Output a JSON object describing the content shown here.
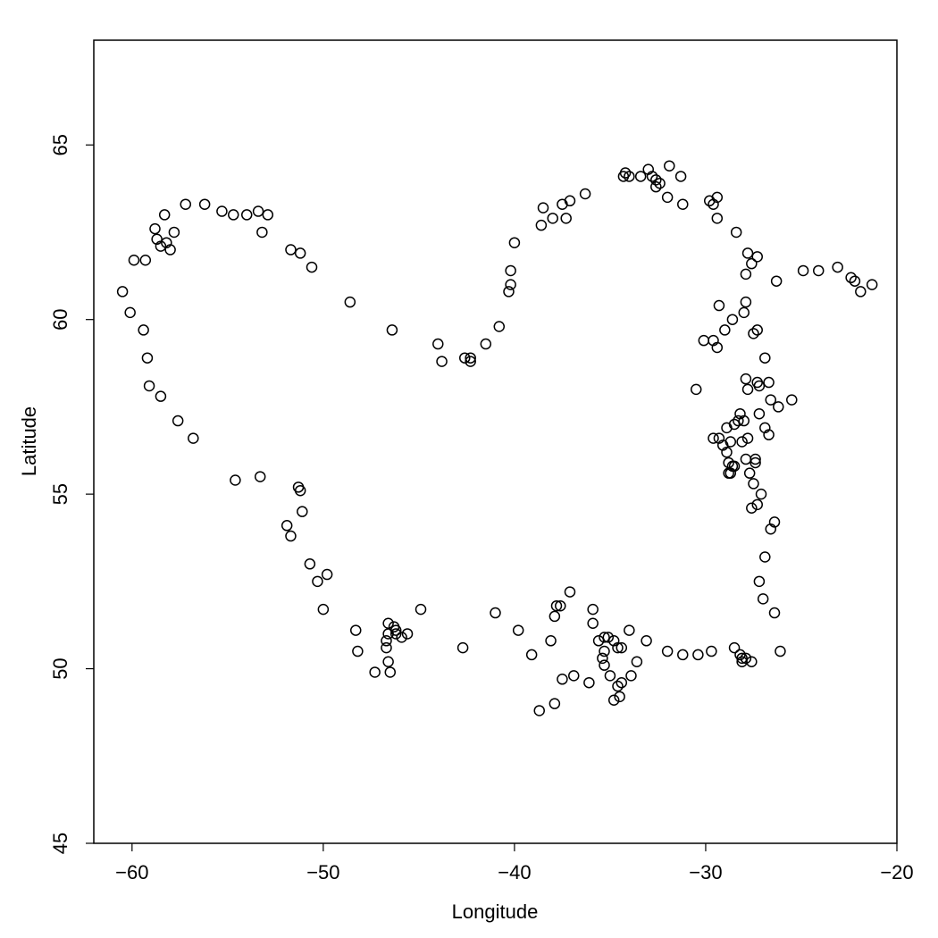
{
  "chart_data": {
    "type": "scatter",
    "title": "",
    "xlabel": "Longitude",
    "ylabel": "Latitude",
    "xlim": [
      -62,
      -20
    ],
    "ylim": [
      45,
      68
    ],
    "xticks": [
      -60,
      -50,
      -40,
      -30,
      -20
    ],
    "yticks": [
      45,
      50,
      55,
      60,
      65
    ],
    "xtick_labels": [
      "−60",
      "−50",
      "−40",
      "−30",
      "−20"
    ],
    "ytick_labels": [
      "45",
      "50",
      "55",
      "60",
      "65"
    ],
    "grid": false,
    "marker": "open-circle",
    "points": [
      [
        -60.5,
        60.8
      ],
      [
        -60.1,
        60.2
      ],
      [
        -59.9,
        61.7
      ],
      [
        -59.3,
        61.7
      ],
      [
        -59.4,
        59.7
      ],
      [
        -59.2,
        58.9
      ],
      [
        -59.1,
        58.1
      ],
      [
        -58.8,
        62.6
      ],
      [
        -58.7,
        62.3
      ],
      [
        -58.5,
        62.1
      ],
      [
        -58.2,
        62.2
      ],
      [
        -58.3,
        63.0
      ],
      [
        -58.0,
        62.0
      ],
      [
        -57.8,
        62.5
      ],
      [
        -57.6,
        57.1
      ],
      [
        -57.2,
        63.3
      ],
      [
        -58.5,
        57.8
      ],
      [
        -56.8,
        56.6
      ],
      [
        -56.2,
        63.3
      ],
      [
        -55.3,
        63.1
      ],
      [
        -54.7,
        63.0
      ],
      [
        -54.0,
        63.0
      ],
      [
        -53.4,
        63.1
      ],
      [
        -52.9,
        63.0
      ],
      [
        -53.2,
        62.5
      ],
      [
        -54.6,
        55.4
      ],
      [
        -53.3,
        55.5
      ],
      [
        -51.7,
        62.0
      ],
      [
        -51.2,
        61.9
      ],
      [
        -50.6,
        61.5
      ],
      [
        -48.6,
        60.5
      ],
      [
        -46.4,
        59.7
      ],
      [
        -51.3,
        55.2
      ],
      [
        -51.2,
        55.1
      ],
      [
        -51.1,
        54.5
      ],
      [
        -51.9,
        54.1
      ],
      [
        -51.7,
        53.8
      ],
      [
        -50.7,
        53.0
      ],
      [
        -50.3,
        52.5
      ],
      [
        -49.8,
        52.7
      ],
      [
        -50.0,
        51.7
      ],
      [
        -48.3,
        51.1
      ],
      [
        -48.2,
        50.5
      ],
      [
        -47.3,
        49.9
      ],
      [
        -46.7,
        50.8
      ],
      [
        -46.7,
        50.6
      ],
      [
        -46.6,
        51.0
      ],
      [
        -46.6,
        51.3
      ],
      [
        -46.3,
        51.2
      ],
      [
        -46.2,
        51.0
      ],
      [
        -46.2,
        51.1
      ],
      [
        -45.9,
        50.9
      ],
      [
        -45.6,
        51.0
      ],
      [
        -46.6,
        50.2
      ],
      [
        -46.5,
        49.9
      ],
      [
        -44.9,
        51.7
      ],
      [
        -42.7,
        50.6
      ],
      [
        -44.0,
        59.3
      ],
      [
        -43.8,
        58.8
      ],
      [
        -42.6,
        58.9
      ],
      [
        -42.3,
        58.9
      ],
      [
        -42.3,
        58.8
      ],
      [
        -41.5,
        59.3
      ],
      [
        -40.8,
        59.8
      ],
      [
        -40.3,
        60.8
      ],
      [
        -40.2,
        61.0
      ],
      [
        -40.2,
        61.4
      ],
      [
        -40.0,
        62.2
      ],
      [
        -38.6,
        62.7
      ],
      [
        -38.5,
        63.2
      ],
      [
        -38.0,
        62.9
      ],
      [
        -37.5,
        63.3
      ],
      [
        -37.3,
        62.9
      ],
      [
        -37.1,
        63.4
      ],
      [
        -36.3,
        63.6
      ],
      [
        -34.3,
        64.1
      ],
      [
        -34.2,
        64.2
      ],
      [
        -34.0,
        64.1
      ],
      [
        -33.4,
        64.1
      ],
      [
        -33.0,
        64.3
      ],
      [
        -32.8,
        64.1
      ],
      [
        -32.6,
        64.0
      ],
      [
        -32.6,
        63.8
      ],
      [
        -32.4,
        63.9
      ],
      [
        -32.0,
        63.5
      ],
      [
        -31.9,
        64.4
      ],
      [
        -31.3,
        64.1
      ],
      [
        -31.2,
        63.3
      ],
      [
        -29.8,
        63.4
      ],
      [
        -29.6,
        63.3
      ],
      [
        -29.4,
        63.5
      ],
      [
        -29.4,
        62.9
      ],
      [
        -28.4,
        62.5
      ],
      [
        -27.8,
        61.9
      ],
      [
        -27.6,
        61.6
      ],
      [
        -27.3,
        61.8
      ],
      [
        -27.9,
        61.3
      ],
      [
        -26.3,
        61.1
      ],
      [
        -24.9,
        61.4
      ],
      [
        -24.1,
        61.4
      ],
      [
        -23.1,
        61.5
      ],
      [
        -22.4,
        61.2
      ],
      [
        -22.2,
        61.1
      ],
      [
        -21.9,
        60.8
      ],
      [
        -21.3,
        61.0
      ],
      [
        -29.3,
        60.4
      ],
      [
        -27.9,
        60.5
      ],
      [
        -28.6,
        60.0
      ],
      [
        -28.0,
        60.2
      ],
      [
        -29.0,
        59.7
      ],
      [
        -30.1,
        59.4
      ],
      [
        -29.6,
        59.4
      ],
      [
        -29.4,
        59.2
      ],
      [
        -27.5,
        59.6
      ],
      [
        -27.3,
        59.7
      ],
      [
        -26.9,
        58.9
      ],
      [
        -30.5,
        58.0
      ],
      [
        -27.9,
        58.3
      ],
      [
        -27.8,
        58.0
      ],
      [
        -27.3,
        58.2
      ],
      [
        -27.2,
        58.1
      ],
      [
        -26.7,
        58.2
      ],
      [
        -26.6,
        57.7
      ],
      [
        -26.2,
        57.5
      ],
      [
        -25.5,
        57.7
      ],
      [
        -28.2,
        57.3
      ],
      [
        -28.3,
        57.1
      ],
      [
        -28.0,
        57.1
      ],
      [
        -28.5,
        57.0
      ],
      [
        -27.2,
        57.3
      ],
      [
        -26.9,
        56.9
      ],
      [
        -26.7,
        56.7
      ],
      [
        -28.9,
        56.9
      ],
      [
        -29.6,
        56.6
      ],
      [
        -29.3,
        56.6
      ],
      [
        -29.1,
        56.4
      ],
      [
        -28.7,
        56.5
      ],
      [
        -28.1,
        56.5
      ],
      [
        -27.8,
        56.6
      ],
      [
        -28.9,
        56.2
      ],
      [
        -27.9,
        56.0
      ],
      [
        -27.4,
        56.0
      ],
      [
        -27.4,
        55.9
      ],
      [
        -28.8,
        55.9
      ],
      [
        -28.6,
        55.8
      ],
      [
        -28.5,
        55.8
      ],
      [
        -28.8,
        55.6
      ],
      [
        -28.7,
        55.6
      ],
      [
        -27.7,
        55.6
      ],
      [
        -27.5,
        55.3
      ],
      [
        -27.1,
        55.0
      ],
      [
        -27.3,
        54.7
      ],
      [
        -27.6,
        54.6
      ],
      [
        -26.4,
        54.2
      ],
      [
        -26.6,
        54.0
      ],
      [
        -26.9,
        53.2
      ],
      [
        -27.2,
        52.5
      ],
      [
        -27.0,
        52.0
      ],
      [
        -26.4,
        51.6
      ],
      [
        -26.1,
        50.5
      ],
      [
        -41.0,
        51.6
      ],
      [
        -39.8,
        51.1
      ],
      [
        -39.1,
        50.4
      ],
      [
        -38.7,
        48.8
      ],
      [
        -38.1,
        50.8
      ],
      [
        -37.9,
        51.5
      ],
      [
        -37.8,
        51.8
      ],
      [
        -37.6,
        51.8
      ],
      [
        -37.1,
        52.2
      ],
      [
        -37.9,
        49.0
      ],
      [
        -37.5,
        49.7
      ],
      [
        -36.9,
        49.8
      ],
      [
        -36.1,
        49.6
      ],
      [
        -35.9,
        51.7
      ],
      [
        -35.9,
        51.3
      ],
      [
        -35.6,
        50.8
      ],
      [
        -35.3,
        50.9
      ],
      [
        -35.1,
        50.9
      ],
      [
        -34.8,
        50.8
      ],
      [
        -35.4,
        50.3
      ],
      [
        -35.3,
        50.1
      ],
      [
        -35.3,
        50.5
      ],
      [
        -34.6,
        50.6
      ],
      [
        -34.4,
        50.6
      ],
      [
        -35.0,
        49.8
      ],
      [
        -34.6,
        49.5
      ],
      [
        -34.4,
        49.6
      ],
      [
        -34.8,
        49.1
      ],
      [
        -34.5,
        49.2
      ],
      [
        -34.0,
        51.1
      ],
      [
        -33.9,
        49.8
      ],
      [
        -33.6,
        50.2
      ],
      [
        -33.1,
        50.8
      ],
      [
        -32.0,
        50.5
      ],
      [
        -31.2,
        50.4
      ],
      [
        -30.4,
        50.4
      ],
      [
        -29.7,
        50.5
      ],
      [
        -28.5,
        50.6
      ],
      [
        -28.2,
        50.4
      ],
      [
        -28.1,
        50.3
      ],
      [
        -27.9,
        50.3
      ],
      [
        -27.6,
        50.2
      ],
      [
        -28.1,
        50.2
      ]
    ]
  }
}
